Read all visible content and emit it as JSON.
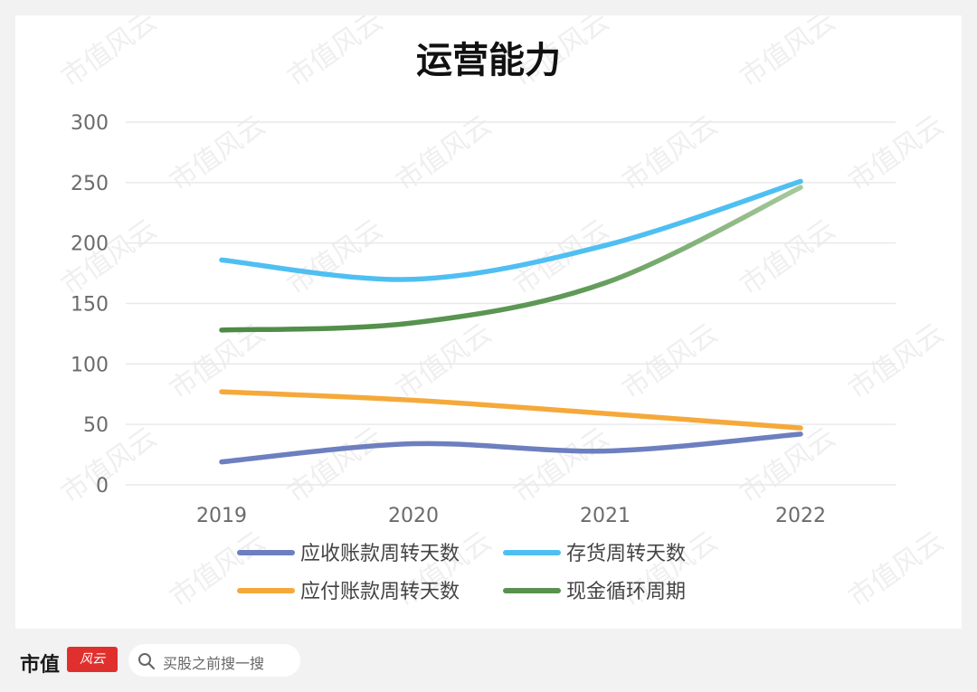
{
  "chart_data": {
    "type": "line",
    "title": "运营能力",
    "categories": [
      "2019",
      "2020",
      "2021",
      "2022"
    ],
    "y_ticks": [
      "0",
      "50",
      "100",
      "150",
      "200",
      "250",
      "300"
    ],
    "ylim": [
      0,
      300
    ],
    "xlabel": "",
    "ylabel": "",
    "grid": true,
    "legend_position": "bottom",
    "series": [
      {
        "name": "应收账款周转天数",
        "values": [
          19,
          34,
          28,
          42
        ],
        "color": "#6d7fbf"
      },
      {
        "name": "存货周转天数",
        "values": [
          186,
          170,
          198,
          251
        ],
        "color": "#4fbff2"
      },
      {
        "name": "应付账款周转天数",
        "values": [
          77,
          70,
          59,
          47
        ],
        "color": "#f5a93a"
      },
      {
        "name": "现金循环周期",
        "values": [
          128,
          134,
          167,
          246
        ],
        "color": "#5a9150"
      }
    ]
  },
  "footer": {
    "brand": "市值",
    "brand_seal": "风云",
    "search_placeholder": "买股之前搜一搜"
  },
  "colors": {
    "grid": "#e9e9e9",
    "tick_text": "#6b6b6b",
    "title_text": "#111111",
    "watermark": "#efefef"
  }
}
